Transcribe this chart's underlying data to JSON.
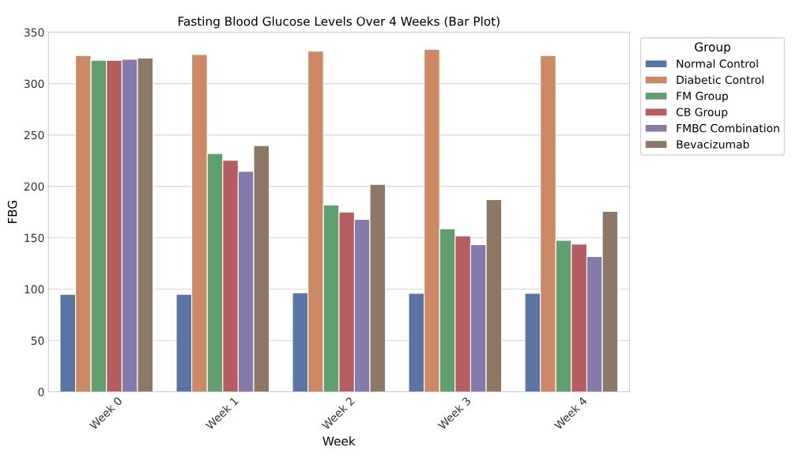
{
  "chart_data": {
    "type": "bar",
    "title": "Fasting Blood Glucose Levels Over 4 Weeks (Bar Plot)",
    "xlabel": "Week",
    "ylabel": "FBG",
    "legend_title": "Group",
    "categories": [
      "Week 0",
      "Week 1",
      "Week 2",
      "Week 3",
      "Week 4"
    ],
    "series": [
      {
        "name": "Normal Control",
        "color": "#5875a4",
        "values": [
          95,
          95,
          96.5,
          96,
          96
        ]
      },
      {
        "name": "Diabetic Control",
        "color": "#cc8963",
        "values": [
          327.3,
          328.3,
          331.6,
          333.4,
          327.3
        ]
      },
      {
        "name": "FM Group",
        "color": "#5f9e6e",
        "values": [
          322.7,
          232,
          181.9,
          158.7,
          147.5
        ]
      },
      {
        "name": "CB Group",
        "color": "#b55d60",
        "values": [
          322.7,
          225.4,
          175,
          151.8,
          143.9
        ]
      },
      {
        "name": "FMBC Combination",
        "color": "#857aab",
        "values": [
          323.7,
          214.7,
          167.9,
          143.2,
          131.7
        ]
      },
      {
        "name": "Bevacizumab",
        "color": "#8d7866",
        "values": [
          324.8,
          239.7,
          202,
          187.2,
          175.8
        ]
      }
    ],
    "ylim": [
      0,
      350
    ],
    "yticks": [
      0,
      50,
      100,
      150,
      200,
      250,
      300,
      350
    ],
    "grid": "y",
    "legend": "top right"
  }
}
